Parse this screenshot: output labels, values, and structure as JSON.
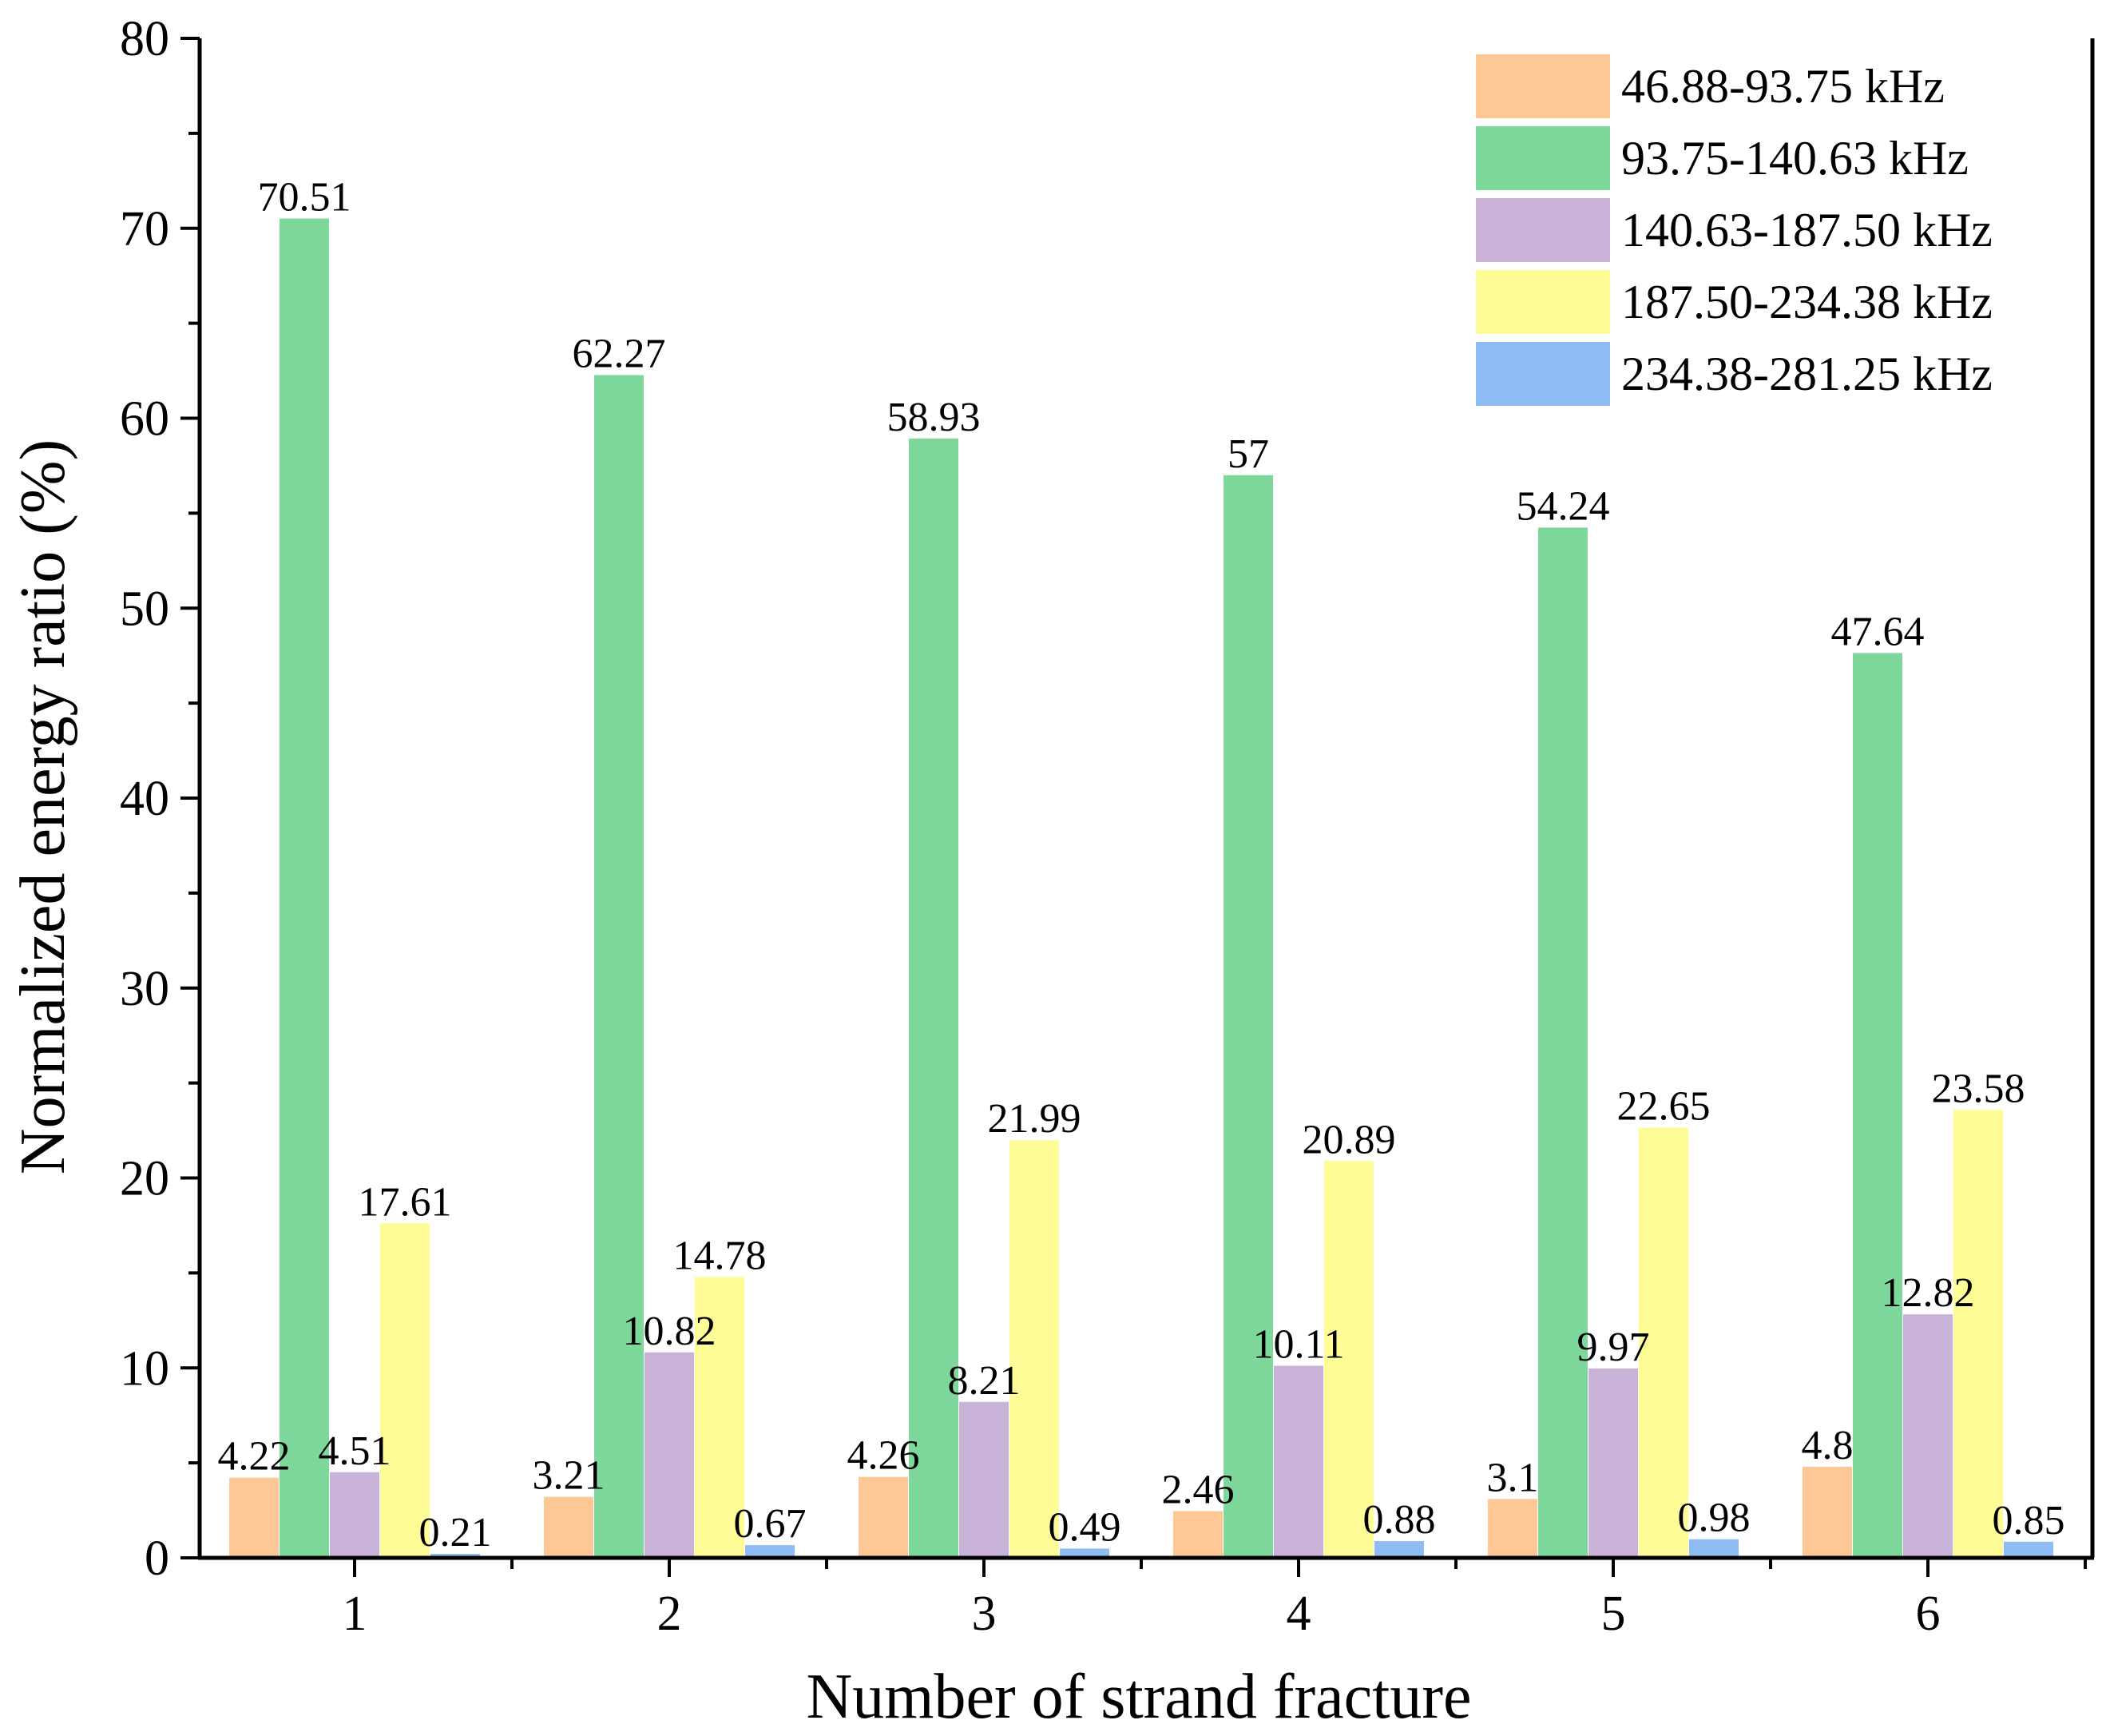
{
  "chart_data": {
    "type": "bar",
    "title": "",
    "xlabel": "Number of strand fracture",
    "ylabel": "Normalized energy ratio (%)",
    "ylim": [
      0,
      80
    ],
    "yticks": [
      0,
      10,
      20,
      30,
      40,
      50,
      60,
      70,
      80
    ],
    "categories": [
      "1",
      "2",
      "3",
      "4",
      "5",
      "6"
    ],
    "legend_position": "top-right",
    "series": [
      {
        "name": "46.88-93.75 kHz",
        "color": "#FDC895",
        "values": [
          4.22,
          3.21,
          4.26,
          2.46,
          3.1,
          4.8
        ],
        "labels": [
          "4.22",
          "3.21",
          "4.26",
          "2.46",
          "3.1",
          "4.8"
        ]
      },
      {
        "name": "93.75-140.63 kHz",
        "color": "#7FD89B",
        "values": [
          70.51,
          62.27,
          58.93,
          57,
          54.24,
          47.64
        ],
        "labels": [
          "70.51",
          "62.27",
          "58.93",
          "57",
          "54.24",
          "47.64"
        ]
      },
      {
        "name": "140.63-187.50 kHz",
        "color": "#C8B2D8",
        "values": [
          4.51,
          10.82,
          8.21,
          10.11,
          9.97,
          12.82
        ],
        "labels": [
          "4.51",
          "10.82",
          "8.21",
          "10.11",
          "9.97",
          "12.82"
        ]
      },
      {
        "name": "187.50-234.38 kHz",
        "color": "#FEFC96",
        "values": [
          17.61,
          14.78,
          21.99,
          20.89,
          22.65,
          23.58
        ],
        "labels": [
          "17.61",
          "14.78",
          "21.99",
          "20.89",
          "22.65",
          "23.58"
        ]
      },
      {
        "name": "234.38-281.25 kHz",
        "color": "#8FBCF3",
        "values": [
          0.21,
          0.67,
          0.49,
          0.88,
          0.98,
          0.85
        ],
        "labels": [
          "0.21",
          "0.67",
          "0.49",
          "0.88",
          "0.98",
          "0.85"
        ]
      }
    ]
  }
}
